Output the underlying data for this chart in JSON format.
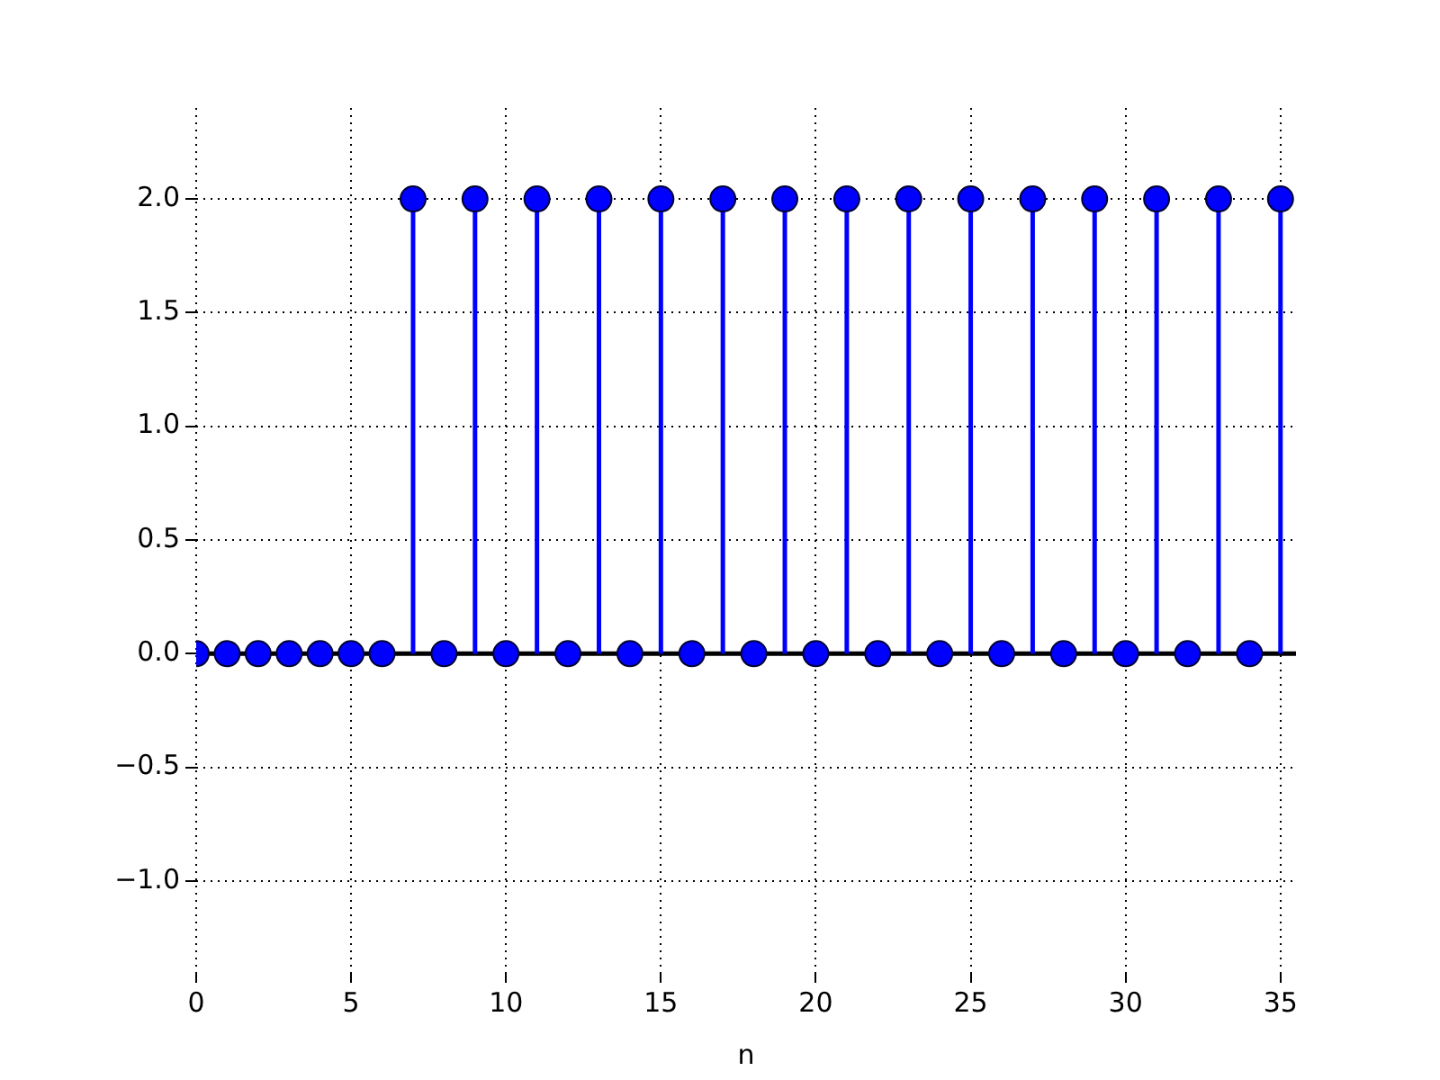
{
  "chart_data": {
    "type": "lollipop",
    "xlabel": "n",
    "x": [
      0,
      1,
      2,
      3,
      4,
      5,
      6,
      7,
      8,
      9,
      10,
      11,
      12,
      13,
      14,
      15,
      16,
      17,
      18,
      19,
      20,
      21,
      22,
      23,
      24,
      25,
      26,
      27,
      28,
      29,
      30,
      31,
      32,
      33,
      34,
      35
    ],
    "series": [
      {
        "color": "#0000ff",
        "values": [
          0,
          0,
          0,
          0,
          0,
          0,
          0,
          2,
          0,
          2,
          0,
          2,
          0,
          2,
          0,
          2,
          0,
          2,
          0,
          2,
          0,
          2,
          0,
          2,
          0,
          2,
          0,
          2,
          0,
          2,
          0,
          2,
          0,
          2,
          0,
          2
        ]
      }
    ],
    "xlim": [
      0,
      35.5
    ],
    "xticks": [
      0,
      5,
      10,
      15,
      20,
      25,
      30,
      35
    ],
    "ylim": [
      -1.4,
      2.4
    ],
    "yticks": [
      {
        "value": -1,
        "label": "−1.0"
      },
      {
        "value": -0.5,
        "label": "−0.5"
      },
      {
        "value": 0,
        "label": "0.0"
      },
      {
        "value": 0.5,
        "label": "0.5"
      },
      {
        "value": 1,
        "label": "1.0"
      },
      {
        "value": 1.5,
        "label": "1.5"
      },
      {
        "value": 2,
        "label": "2.0"
      }
    ],
    "ref_lines": [
      {
        "axis": "y",
        "value": 0,
        "color": "#000000"
      }
    ],
    "grid": true,
    "marker": "circle",
    "legend": false
  }
}
